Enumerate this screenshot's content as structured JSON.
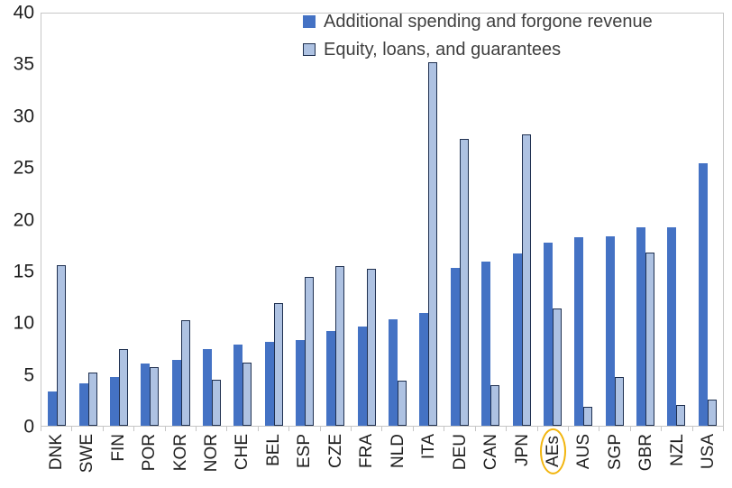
{
  "chart_data": {
    "type": "bar",
    "title": "",
    "xlabel": "",
    "ylabel": "",
    "categories": [
      "DNK",
      "SWE",
      "FIN",
      "POR",
      "KOR",
      "NOR",
      "CHE",
      "BEL",
      "ESP",
      "CZE",
      "FRA",
      "NLD",
      "ITA",
      "DEU",
      "CAN",
      "JPN",
      "AEs",
      "AUS",
      "SGP",
      "GBR",
      "NZL",
      "USA"
    ],
    "series": [
      {
        "name": "Additional spending and forgone revenue",
        "color": "#4472c4",
        "border_color": null,
        "values": [
          3.3,
          4.1,
          4.7,
          6.0,
          6.4,
          7.4,
          7.9,
          8.1,
          8.3,
          9.2,
          9.6,
          10.3,
          10.9,
          15.3,
          15.9,
          16.7,
          17.8,
          18.3,
          18.4,
          19.3,
          19.3,
          25.5
        ]
      },
      {
        "name": "Equity, loans, and guarantees",
        "color": "#aec2e2",
        "border_color": "#1f3050",
        "values": [
          15.6,
          5.2,
          7.4,
          5.7,
          10.2,
          4.5,
          6.1,
          11.9,
          14.4,
          15.5,
          15.2,
          4.4,
          35.3,
          27.8,
          3.9,
          28.3,
          11.4,
          1.8,
          4.7,
          16.8,
          2.0,
          2.5
        ]
      }
    ],
    "ylim": [
      0,
      40
    ],
    "yticks": [
      0,
      5,
      10,
      15,
      20,
      25,
      30,
      35,
      40
    ],
    "grid": false,
    "legend_position": "top-center",
    "highlighted_category": "AEs",
    "highlight_color": "#f2b50d"
  }
}
